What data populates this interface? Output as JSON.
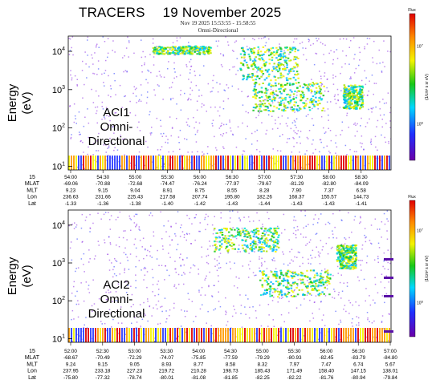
{
  "title": {
    "mission": "TRACERS",
    "date": "19 November 2025"
  },
  "chart_data": [
    {
      "type": "heatmap",
      "header_line1": "Nov 19 2025 15:53:55 - 15:58:55",
      "header_line2": "Omni-Directional",
      "panel_label": [
        "ACI1",
        "Omni-",
        "Directional"
      ],
      "ylabel": [
        "Energy",
        "(eV)"
      ],
      "y_scale": "log",
      "ylim": [
        8,
        25000
      ],
      "yticks": [
        {
          "label": "10",
          "exp": "1",
          "v": 10
        },
        {
          "label": "10",
          "exp": "2",
          "v": 100
        },
        {
          "label": "10",
          "exp": "3",
          "v": 1000
        },
        {
          "label": "10",
          "exp": "4",
          "v": 10000
        }
      ],
      "colorbar": {
        "label": "Flux",
        "scale": "log",
        "ticks": [
          {
            "label": "10",
            "exp": "6"
          },
          {
            "label": "10",
            "exp": "7"
          }
        ],
        "units": "(1/cm² s sr eV)"
      },
      "time_row_label": "15",
      "row_labels": [
        "MLAT",
        "MLT",
        "Lon",
        "Lat"
      ],
      "columns": [
        {
          "time": "54:00",
          "MLAT": "-69.06",
          "MLT": "9.23",
          "Lon": "236.63",
          "Lat": "-1.33"
        },
        {
          "time": "54:30",
          "MLAT": "-70.88",
          "MLT": "9.15",
          "Lon": "231.66",
          "Lat": "-1.36"
        },
        {
          "time": "55:00",
          "MLAT": "-72.68",
          "MLT": "9.04",
          "Lon": "225.43",
          "Lat": "-1.38"
        },
        {
          "time": "55:30",
          "MLAT": "-74.47",
          "MLT": "8.91",
          "Lon": "217.58",
          "Lat": "-1.40"
        },
        {
          "time": "56:00",
          "MLAT": "-76.24",
          "MLT": "8.75",
          "Lon": "207.74",
          "Lat": "-1.42"
        },
        {
          "time": "56:30",
          "MLAT": "-77.97",
          "MLT": "8.55",
          "Lon": "195.80",
          "Lat": "-1.43"
        },
        {
          "time": "57:00",
          "MLAT": "-79.67",
          "MLT": "8.28",
          "Lon": "182.26",
          "Lat": "-1.44"
        },
        {
          "time": "57:30",
          "MLAT": "-81.29",
          "MLT": "7.90",
          "Lon": "168.37",
          "Lat": "-1.43"
        },
        {
          "time": "58:00",
          "MLAT": "-82.80",
          "MLT": "7.37",
          "Lon": "155.57",
          "Lat": "-1.43"
        },
        {
          "time": "58:30",
          "MLAT": "-84.09",
          "MLT": "6.58",
          "Lon": "144.73",
          "Lat": "-1.41"
        }
      ]
    },
    {
      "type": "heatmap",
      "panel_label": [
        "ACI2",
        "Omni-",
        "Directional"
      ],
      "ylabel": [
        "Energy",
        "(eV)"
      ],
      "y_scale": "log",
      "ylim": [
        8,
        25000
      ],
      "yticks": [
        {
          "label": "10",
          "exp": "1",
          "v": 10
        },
        {
          "label": "10",
          "exp": "2",
          "v": 100
        },
        {
          "label": "10",
          "exp": "3",
          "v": 1000
        },
        {
          "label": "10",
          "exp": "4",
          "v": 10000
        }
      ],
      "colorbar": {
        "label": "Flux",
        "scale": "log",
        "ticks": [
          {
            "label": "10",
            "exp": "6"
          },
          {
            "label": "10",
            "exp": "7"
          }
        ],
        "units": "(1/cm² s sr eV)"
      },
      "time_row_label": "15",
      "row_labels": [
        "MLAT",
        "MLT",
        "Lon",
        "Lat"
      ],
      "columns": [
        {
          "time": "52:00",
          "MLAT": "-68.67",
          "MLT": "9.24",
          "Lon": "237.95",
          "Lat": "-75.80"
        },
        {
          "time": "52:30",
          "MLAT": "-70.49",
          "MLT": "9.15",
          "Lon": "233.18",
          "Lat": "-77.32"
        },
        {
          "time": "53:00",
          "MLAT": "-72.29",
          "MLT": "9.05",
          "Lon": "227.23",
          "Lat": "-78.74"
        },
        {
          "time": "53:30",
          "MLAT": "-74.07",
          "MLT": "8.93",
          "Lon": "219.72",
          "Lat": "-80.01"
        },
        {
          "time": "54:00",
          "MLAT": "-75.85",
          "MLT": "8.77",
          "Lon": "210.28",
          "Lat": "-81.08"
        },
        {
          "time": "54:30",
          "MLAT": "-77.59",
          "MLT": "8.58",
          "Lon": "198.73",
          "Lat": "-81.85"
        },
        {
          "time": "55:00",
          "MLAT": "-79.29",
          "MLT": "8.32",
          "Lon": "185.43",
          "Lat": "-82.25"
        },
        {
          "time": "55:30",
          "MLAT": "-80.93",
          "MLT": "7.97",
          "Lon": "171.49",
          "Lat": "-82.22"
        },
        {
          "time": "56:00",
          "MLAT": "-82.45",
          "MLT": "7.47",
          "Lon": "158.40",
          "Lat": "-81.76"
        },
        {
          "time": "56:30",
          "MLAT": "-83.79",
          "MLT": "6.74",
          "Lon": "147.15",
          "Lat": "-80.94"
        },
        {
          "time": "57:00",
          "MLAT": "-84.80",
          "MLT": "5.67",
          "Lon": "138.01",
          "Lat": "-79.84"
        }
      ]
    }
  ]
}
